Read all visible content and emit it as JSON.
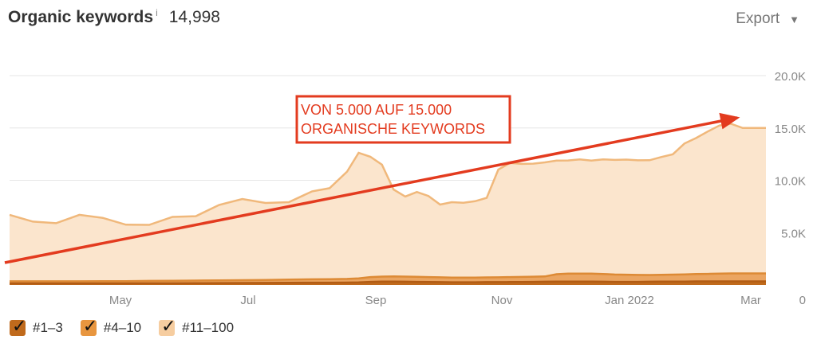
{
  "header": {
    "title": "Organic keywords",
    "info_icon": "i",
    "count": "14,998",
    "export_label": "Export",
    "export_icon": "chevron-down-icon"
  },
  "legend": [
    {
      "label": "#1–3",
      "color": "#c06a1c"
    },
    {
      "label": "#4–10",
      "color": "#e8963f"
    },
    {
      "label": "#11–100",
      "color": "#f6cda0"
    }
  ],
  "annotation": {
    "line1": "VON 5.000 AUF 15.000",
    "line2": "ORGANISCHE KEYWORDS",
    "color": "#e33b1f"
  },
  "chart_data": {
    "type": "area",
    "stacked": true,
    "x_ticks": [
      "May",
      "Jul",
      "Sep",
      "Nov",
      "Jan 2022",
      "Mar"
    ],
    "y_ticks": [
      "20.0K",
      "15.0K",
      "10.0K",
      "5.0K",
      "0"
    ],
    "ylim": [
      0,
      20000
    ],
    "grid": true,
    "legend_position": "bottom-left",
    "x": [
      0,
      0.4,
      0.8,
      1.2,
      1.6,
      2.0,
      2.4,
      2.8,
      3.2,
      3.6,
      4.0,
      4.4,
      4.8,
      5.2,
      5.5,
      5.8,
      6.0,
      6.2,
      6.4,
      6.6,
      6.8,
      7.0,
      7.2,
      7.4,
      7.6,
      7.8,
      8.0,
      8.2,
      8.4,
      8.6,
      8.8,
      9.0,
      9.2,
      9.4,
      9.6,
      9.8,
      10.0,
      10.2,
      10.4,
      10.6,
      10.8,
      11.0,
      11.2,
      11.4,
      11.6,
      11.8,
      12.0,
      12.2,
      12.4,
      12.6,
      12.8,
      13.0
    ],
    "series": [
      {
        "name": "#1–3",
        "color": "#c06a1c",
        "values": [
          150,
          150,
          150,
          150,
          150,
          150,
          160,
          160,
          170,
          180,
          190,
          200,
          210,
          220,
          220,
          230,
          240,
          300,
          320,
          320,
          310,
          300,
          280,
          270,
          260,
          260,
          260,
          270,
          270,
          280,
          290,
          300,
          310,
          330,
          330,
          330,
          320,
          310,
          300,
          300,
          300,
          310,
          320,
          330,
          330,
          340,
          340,
          340,
          340,
          340,
          340,
          340
        ]
      },
      {
        "name": "#4–10",
        "color": "#e8963f",
        "values": [
          200,
          200,
          200,
          200,
          210,
          210,
          230,
          240,
          250,
          260,
          270,
          280,
          300,
          320,
          330,
          350,
          380,
          450,
          480,
          500,
          490,
          480,
          470,
          460,
          450,
          440,
          440,
          450,
          460,
          470,
          480,
          490,
          500,
          700,
          760,
          760,
          760,
          740,
          700,
          680,
          660,
          640,
          650,
          660,
          680,
          700,
          720,
          740,
          760,
          760,
          760,
          760
        ]
      },
      {
        "name": "#11–100",
        "color": "#f6cda0",
        "values": [
          6350,
          5700,
          5550,
          6350,
          6050,
          5400,
          5350,
          6100,
          6150,
          7200,
          7750,
          7350,
          7400,
          8400,
          8700,
          10250,
          12000,
          11500,
          10700,
          8300,
          7650,
          8100,
          7750,
          6950,
          7200,
          7150,
          7300,
          7600,
          10300,
          10900,
          10800,
          10800,
          10900,
          10850,
          10800,
          10900,
          10800,
          10950,
          10950,
          11000,
          10950,
          10970,
          11250,
          11500,
          12500,
          13000,
          13600,
          14150,
          14300,
          13900,
          13900,
          13900
        ]
      }
    ]
  }
}
